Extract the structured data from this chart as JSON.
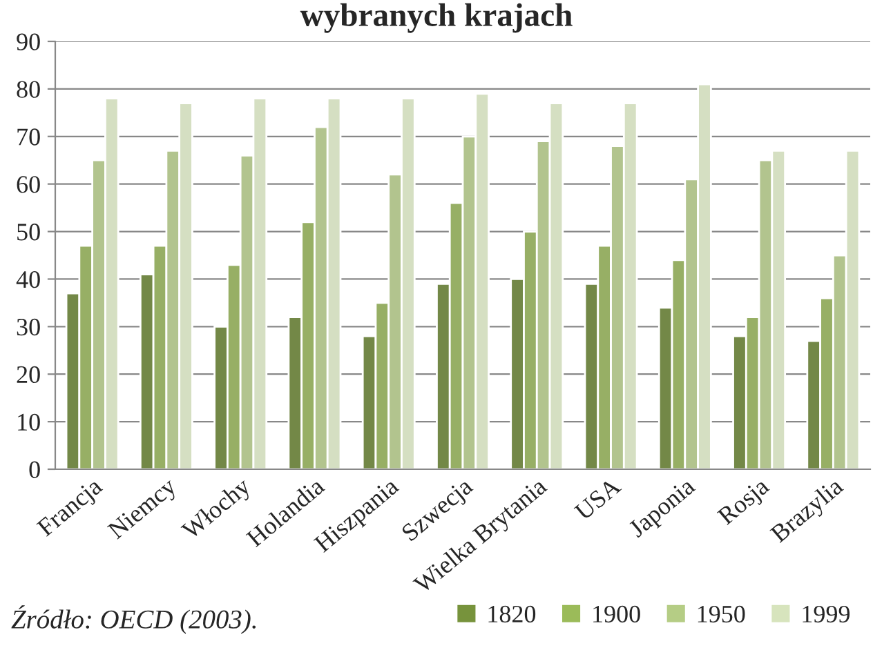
{
  "chart_data": {
    "type": "bar",
    "title": "wybranych krajach",
    "categories": [
      "Francja",
      "Niemcy",
      "Włochy",
      "Holandia",
      "Hiszpania",
      "Szwecja",
      "Wielka Brytania",
      "USA",
      "Japonia",
      "Rosja",
      "Brazylia"
    ],
    "series": [
      {
        "name": "1820",
        "color": "#77933c",
        "values": [
          37,
          41,
          30,
          32,
          28,
          39,
          40,
          39,
          34,
          28,
          27
        ]
      },
      {
        "name": "1900",
        "color": "#9bbb59",
        "values": [
          47,
          47,
          43,
          52,
          35,
          56,
          50,
          47,
          44,
          32,
          36
        ]
      },
      {
        "name": "1950",
        "color": "#b5cd85",
        "values": [
          65,
          67,
          66,
          72,
          62,
          70,
          69,
          68,
          61,
          65,
          45
        ]
      },
      {
        "name": "1999",
        "color": "#d7e4bd",
        "values": [
          78,
          77,
          78,
          78,
          78,
          79,
          77,
          77,
          81,
          67,
          67
        ]
      }
    ],
    "ylim": [
      0,
      90
    ],
    "yticks": [
      0,
      10,
      20,
      30,
      40,
      50,
      60,
      70,
      80,
      90
    ],
    "grid": "y",
    "legend": "bottom",
    "annotations": [
      "Źródło: OECD (2003)."
    ]
  }
}
